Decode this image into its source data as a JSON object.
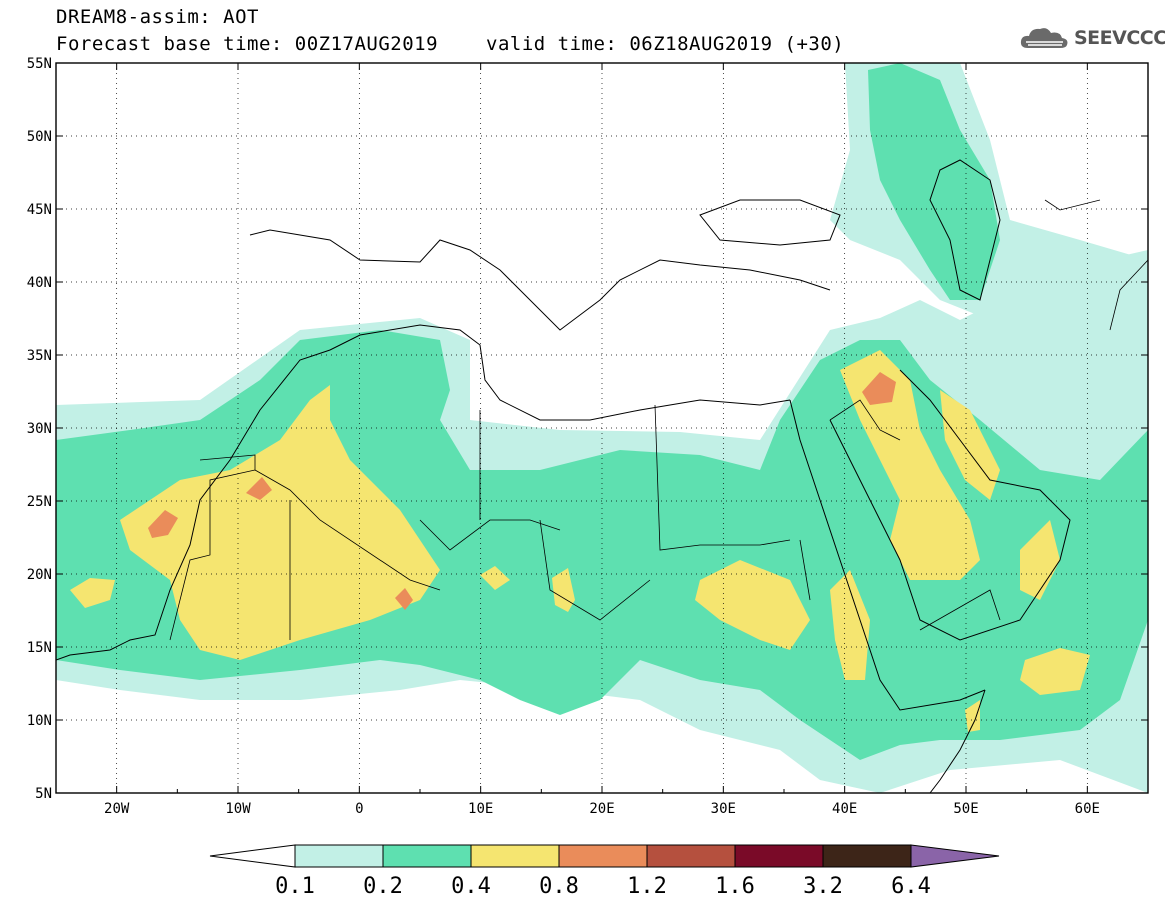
{
  "title": {
    "line1": "DREAM8-assim: AOT",
    "base_time": "Forecast base time: 00Z17AUG2019",
    "valid_time": "valid time: 06Z18AUG2019 (+30)"
  },
  "logo": {
    "text": "SEEVCCC",
    "icon": "cloud-icon"
  },
  "map": {
    "region": "North Africa, Mediterranean and Middle East",
    "lon_range": [
      -25,
      65
    ],
    "lat_range": [
      5,
      55
    ],
    "lat_labels": [
      "5N",
      "10N",
      "15N",
      "20N",
      "25N",
      "30N",
      "35N",
      "40N",
      "45N",
      "50N",
      "55N"
    ],
    "lon_labels": [
      "20W",
      "10W",
      "0",
      "10E",
      "20E",
      "30E",
      "40E",
      "50E",
      "60E"
    ],
    "grid": "dotted, every 5 degrees latitude and 10 degrees longitude"
  },
  "colorbar": {
    "labels": [
      "0.1",
      "0.2",
      "0.4",
      "0.8",
      "1.2",
      "1.6",
      "3.2",
      "6.4"
    ],
    "colors": [
      "#ffffff",
      "#c2f0e6",
      "#5ee0b0",
      "#f5e570",
      "#ea8c5a",
      "#b5503e",
      "#7a0a28",
      "#3d2518",
      "#8a64a8"
    ]
  }
}
